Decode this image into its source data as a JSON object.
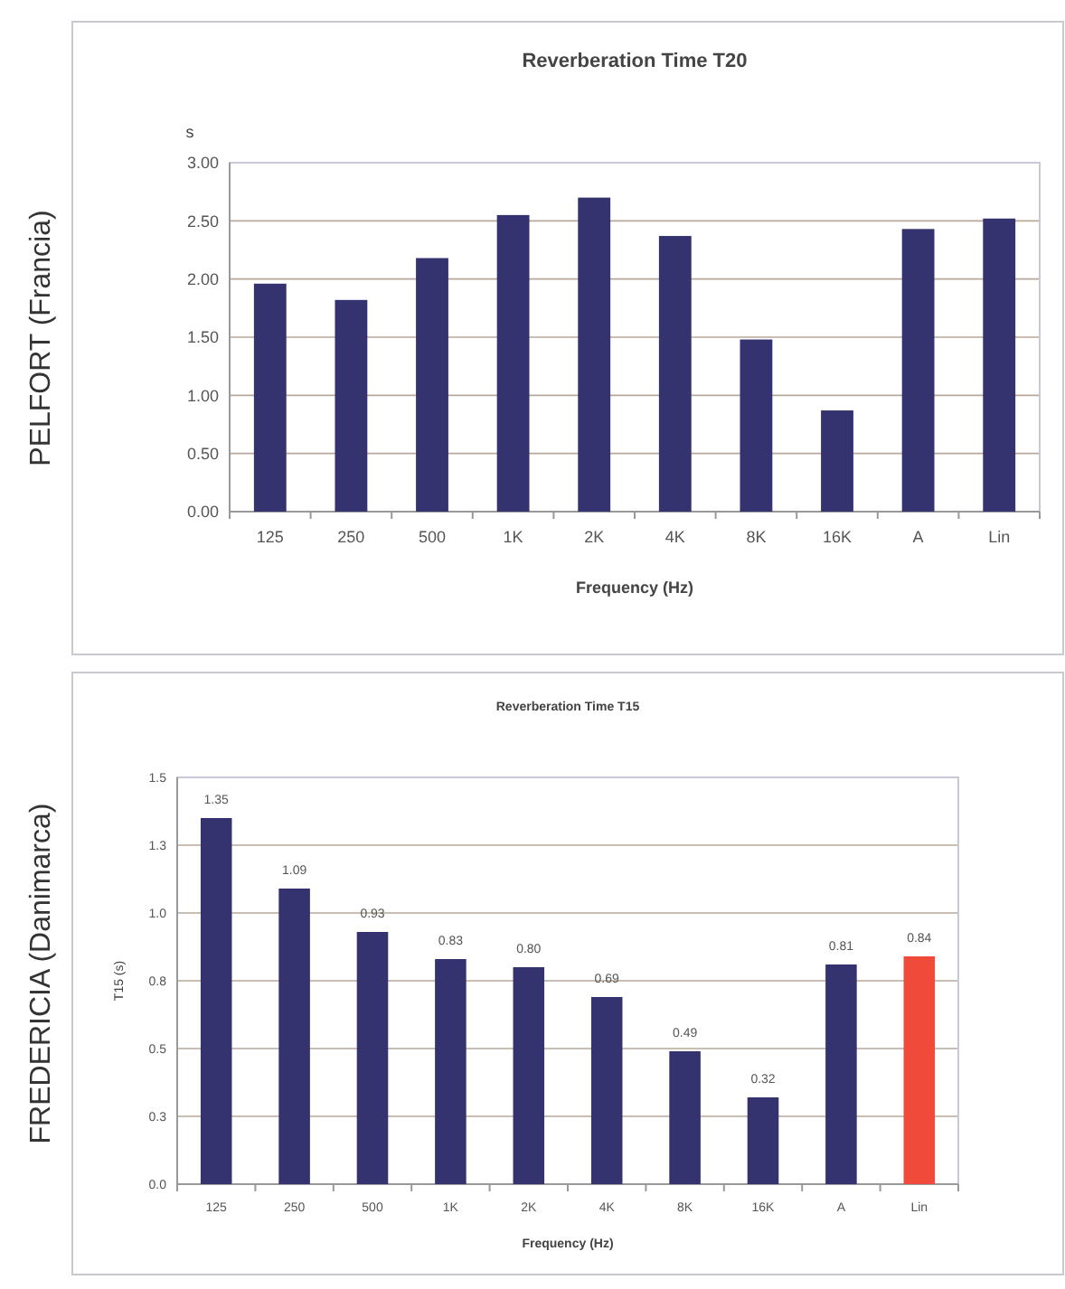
{
  "chart_data": [
    {
      "type": "bar",
      "title": "Reverberation Time T20",
      "xlabel": "Frequency (Hz)",
      "ylabel": "s",
      "annotations": [
        "PELFORT (Francia)"
      ],
      "categories": [
        "125",
        "250",
        "500",
        "1K",
        "2K",
        "4K",
        "8K",
        "16K",
        "A",
        "Lin"
      ],
      "values": [
        1.96,
        1.82,
        2.18,
        2.55,
        2.7,
        2.37,
        1.48,
        0.87,
        2.43,
        2.52
      ],
      "color": "#35336f",
      "ylim": [
        0,
        3
      ],
      "yticks": [
        {
          "value": 0,
          "label": "0.00"
        },
        {
          "value": 0.5,
          "label": "0.50"
        },
        {
          "value": 1,
          "label": "1.00"
        },
        {
          "value": 1.5,
          "label": "1.50"
        },
        {
          "value": 2,
          "label": "2.00"
        },
        {
          "value": 2.5,
          "label": "2.50"
        },
        {
          "value": 3,
          "label": "3.00"
        }
      ],
      "grid": "y"
    },
    {
      "type": "bar",
      "title": "Reverberation Time T15",
      "xlabel": "Frequency (Hz)",
      "ylabel": "T15 (s)",
      "annotations": [
        "FREDERICIA (Danimarca)"
      ],
      "categories": [
        "125",
        "250",
        "500",
        "1K",
        "2K",
        "4K",
        "8K",
        "16K",
        "A",
        "Lin"
      ],
      "values": [
        1.35,
        1.09,
        0.93,
        0.83,
        0.8,
        0.69,
        0.49,
        0.32,
        0.81,
        0.84
      ],
      "colors": [
        "#35336f",
        "#35336f",
        "#35336f",
        "#35336f",
        "#35336f",
        "#35336f",
        "#35336f",
        "#35336f",
        "#35336f",
        "#f04a3a"
      ],
      "ylim": [
        0,
        1.5
      ],
      "yticks": [
        {
          "value": 0,
          "label": "0.0"
        },
        {
          "value": 0.25,
          "label": "0.3"
        },
        {
          "value": 0.5,
          "label": "0.5"
        },
        {
          "value": 0.75,
          "label": "0.8"
        },
        {
          "value": 1,
          "label": "1.0"
        },
        {
          "value": 1.25,
          "label": "1.3"
        },
        {
          "value": 1.5,
          "label": "1.5"
        }
      ],
      "grid": "y",
      "value_labels": [
        "1.35",
        "1.09",
        "0.93",
        "0.83",
        "0.80",
        "0.69",
        "0.49",
        "0.32",
        "0.81",
        "0.84"
      ]
    }
  ]
}
